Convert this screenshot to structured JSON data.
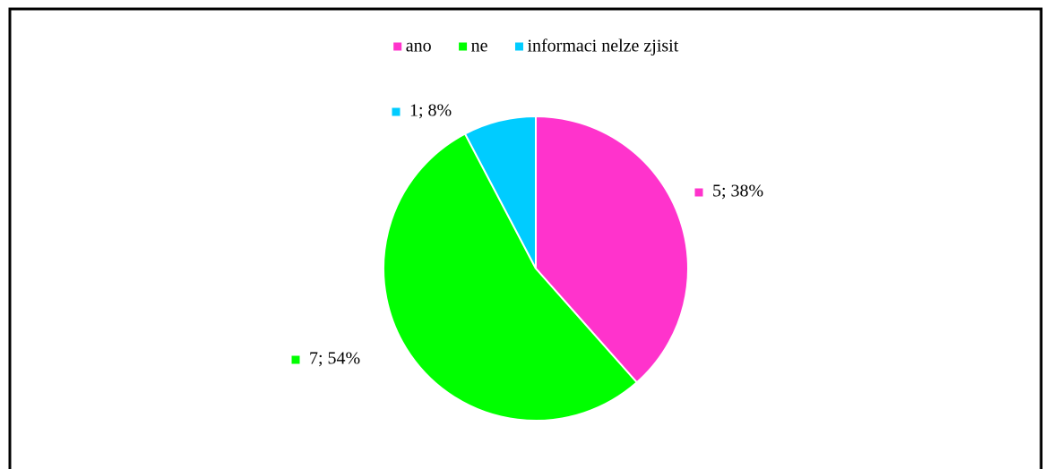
{
  "chart_data": {
    "type": "pie",
    "categories": [
      "ano",
      "ne",
      "informaci nelze zjisit"
    ],
    "values": [
      5,
      7,
      1
    ],
    "value_labels": [
      "5; 38%",
      "7; 54%",
      "1; 8%"
    ],
    "colors": [
      "#ff33cc",
      "#00ff00",
      "#00ccff"
    ],
    "legend": "top"
  }
}
